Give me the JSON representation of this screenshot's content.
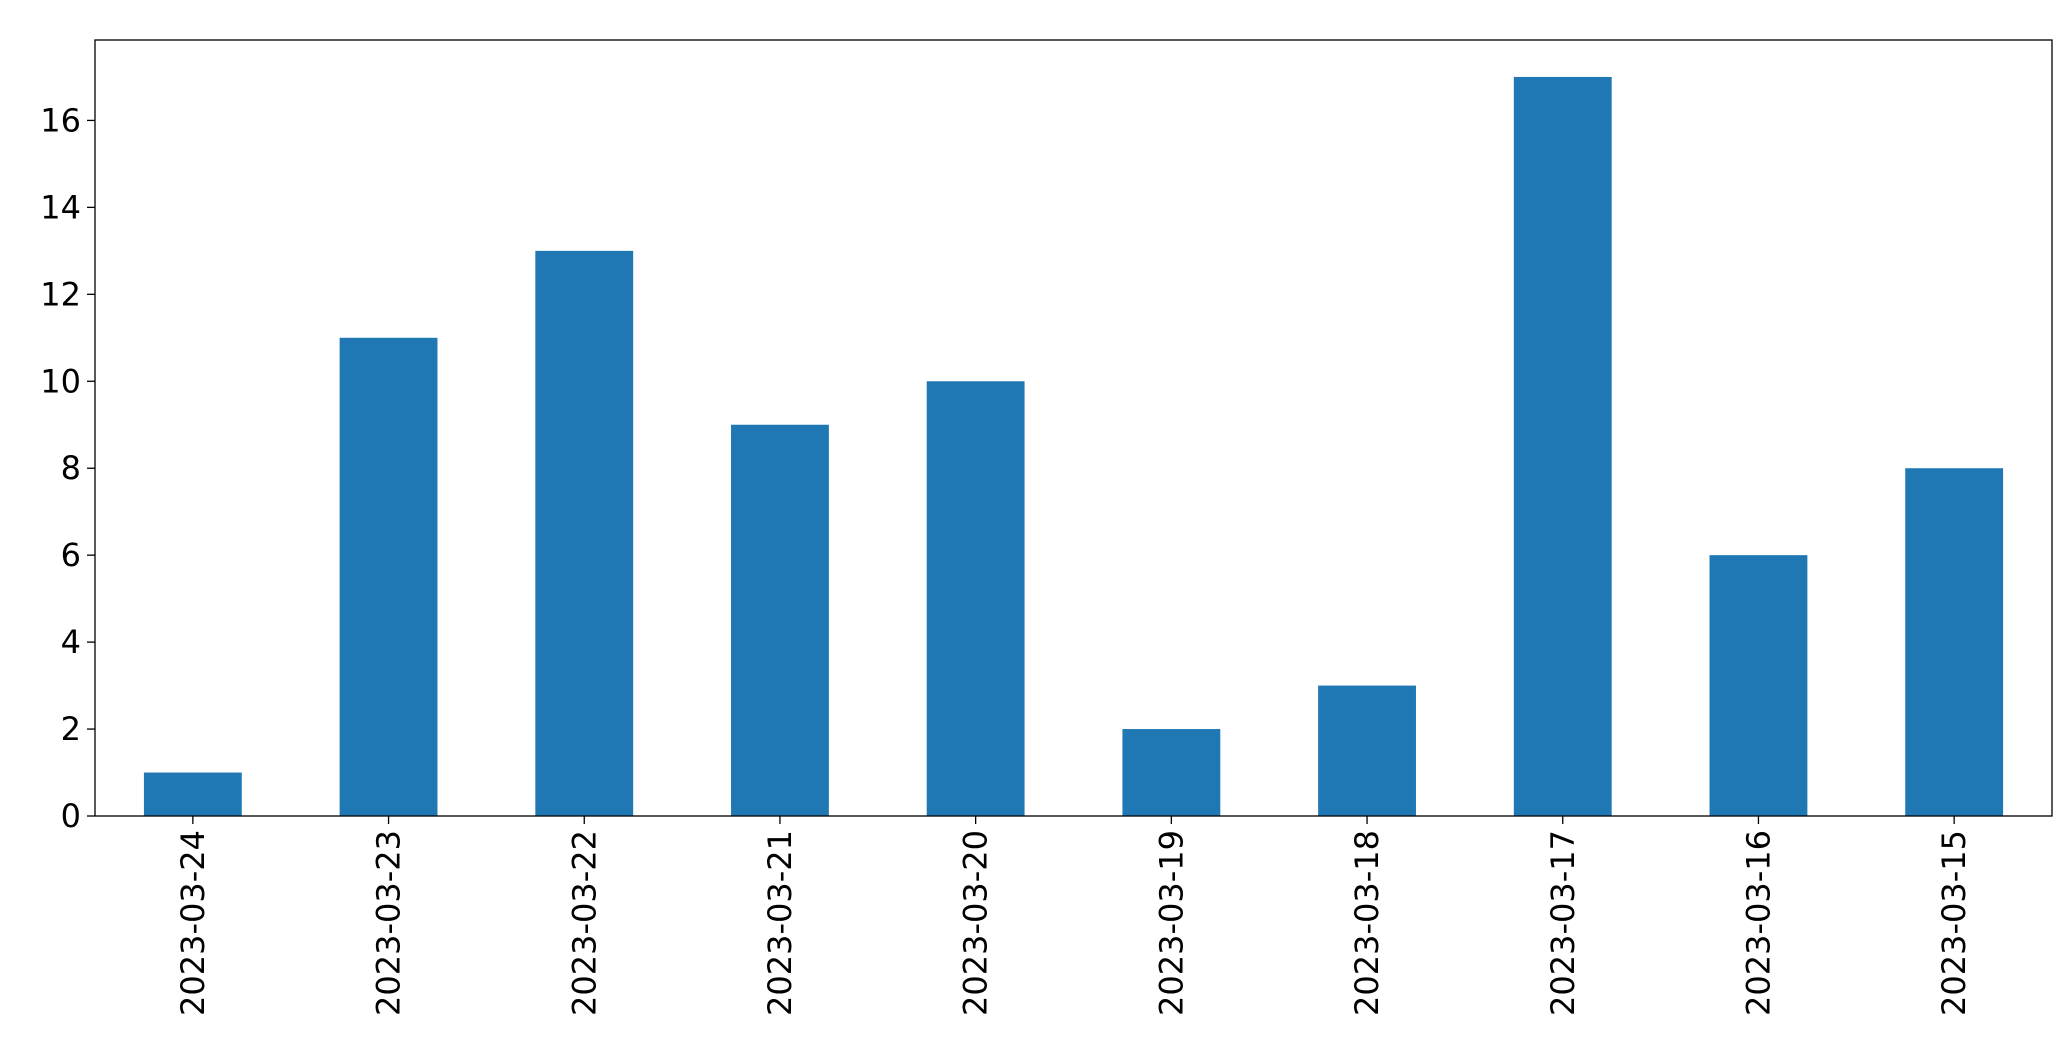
{
  "chart_data": {
    "type": "bar",
    "categories": [
      "2023-03-24",
      "2023-03-23",
      "2023-03-22",
      "2023-03-21",
      "2023-03-20",
      "2023-03-19",
      "2023-03-18",
      "2023-03-17",
      "2023-03-16",
      "2023-03-15"
    ],
    "values": [
      1,
      11,
      13,
      9,
      10,
      2,
      3,
      17,
      6,
      8
    ],
    "color": "#1f77b4",
    "ylim": [
      0,
      17.85
    ],
    "yticks": [
      0,
      2,
      4,
      6,
      8,
      10,
      12,
      14,
      16
    ],
    "grid": false
  }
}
